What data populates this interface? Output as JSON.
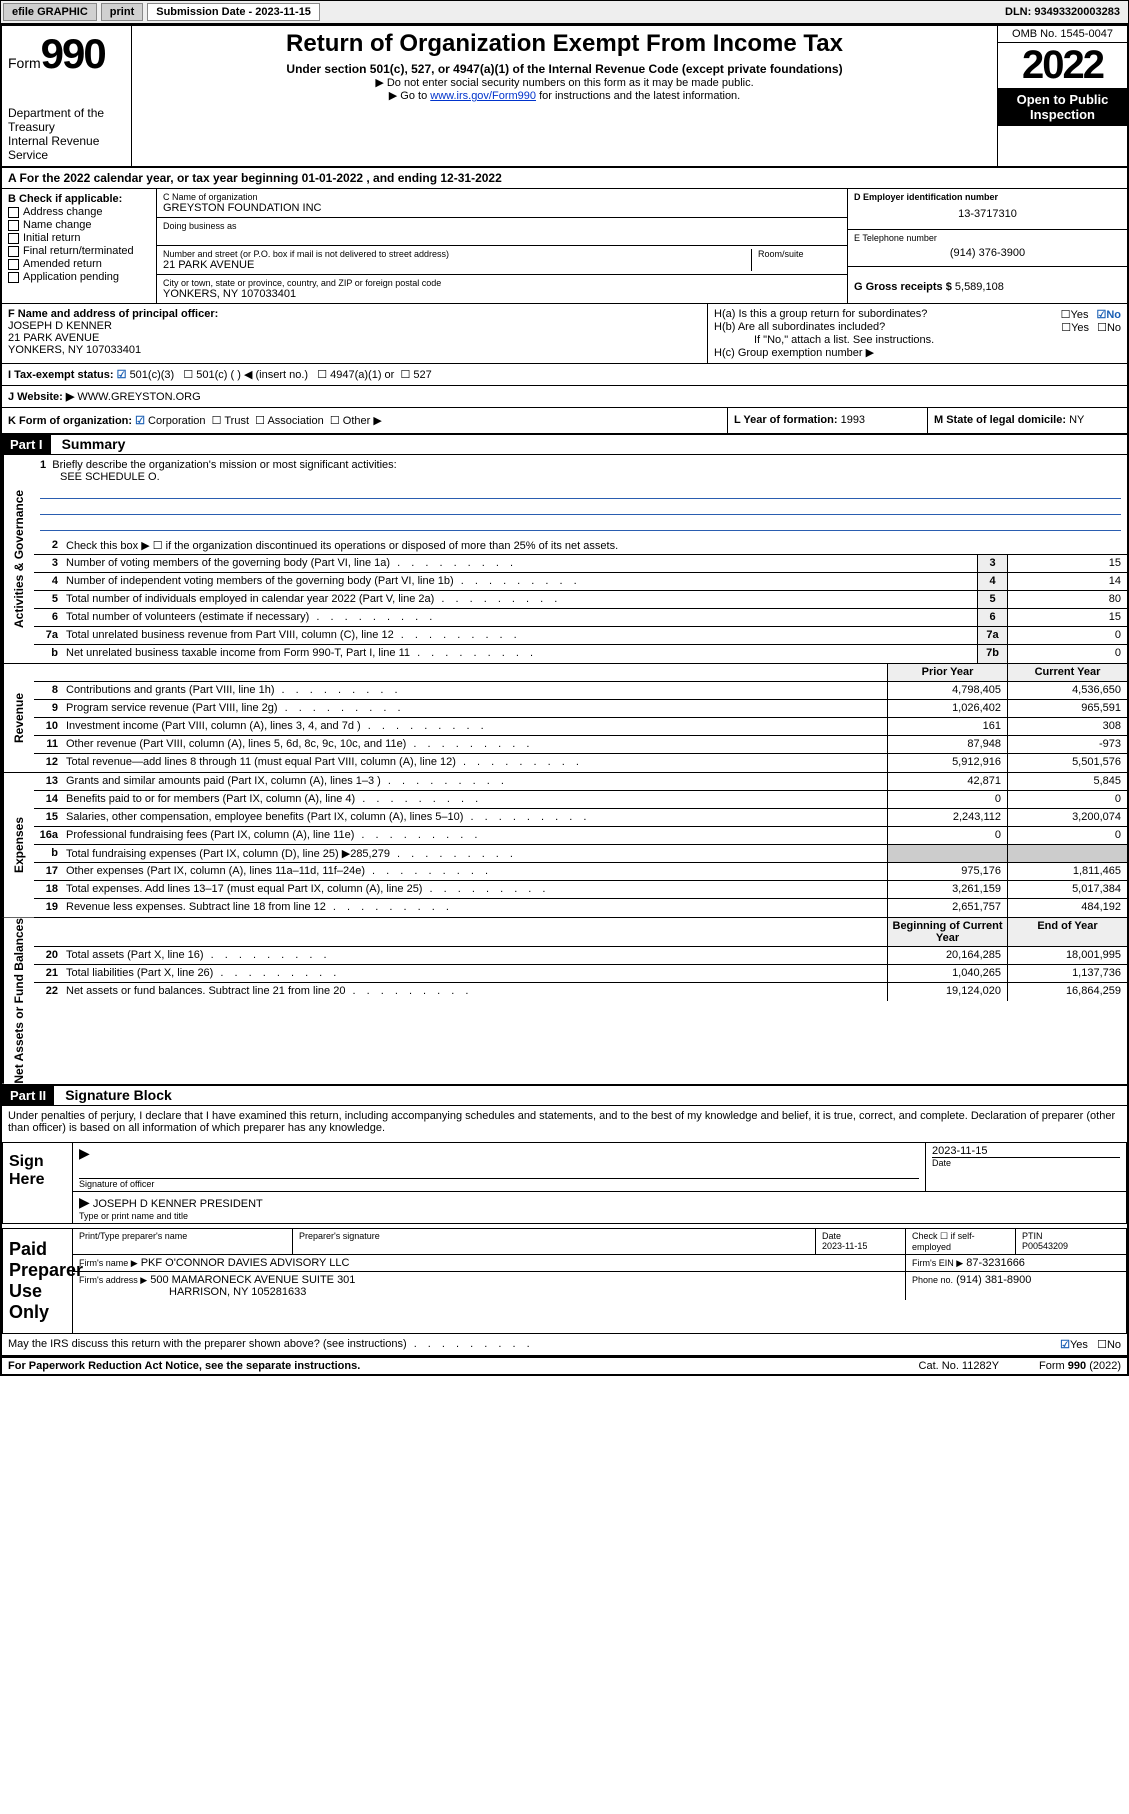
{
  "topbar": {
    "efile": "efile GRAPHIC",
    "print": "print",
    "sub_label": "Submission Date - 2023-11-15",
    "dln": "DLN: 93493320003283"
  },
  "header": {
    "form_word": "Form",
    "form_num": "990",
    "dept": "Department of the Treasury",
    "irs": "Internal Revenue Service",
    "title": "Return of Organization Exempt From Income Tax",
    "sub1": "Under section 501(c), 527, or 4947(a)(1) of the Internal Revenue Code (except private foundations)",
    "sub2": "▶ Do not enter social security numbers on this form as it may be made public.",
    "sub3_pre": "▶ Go to ",
    "sub3_link": "www.irs.gov/Form990",
    "sub3_post": " for instructions and the latest information.",
    "omb": "OMB No. 1545-0047",
    "year": "2022",
    "otp": "Open to Public Inspection"
  },
  "row_a": "A For the 2022 calendar year, or tax year beginning 01-01-2022   , and ending 12-31-2022",
  "col_b": {
    "label": "B Check if applicable:",
    "items": [
      "Address change",
      "Name change",
      "Initial return",
      "Final return/terminated",
      "Amended return",
      "Application pending"
    ]
  },
  "col_c": {
    "name_lbl": "C Name of organization",
    "name": "GREYSTON FOUNDATION INC",
    "dba_lbl": "Doing business as",
    "dba": "",
    "street_lbl": "Number and street (or P.O. box if mail is not delivered to street address)",
    "room_lbl": "Room/suite",
    "street": "21 PARK AVENUE",
    "city_lbl": "City or town, state or province, country, and ZIP or foreign postal code",
    "city": "YONKERS, NY  107033401"
  },
  "col_de": {
    "d_lbl": "D Employer identification number",
    "d_val": "13-3717310",
    "e_lbl": "E Telephone number",
    "e_val": "(914) 376-3900",
    "g_lbl": "G Gross receipts $",
    "g_val": "5,589,108"
  },
  "row_f": {
    "lbl": "F Name and address of principal officer:",
    "name": "JOSEPH D KENNER",
    "addr1": "21 PARK AVENUE",
    "addr2": "YONKERS, NY  107033401"
  },
  "row_h": {
    "ha": "H(a)  Is this a group return for subordinates?",
    "hb": "H(b)  Are all subordinates included?",
    "hb_note": "If \"No,\" attach a list. See instructions.",
    "hc": "H(c)  Group exemption number ▶",
    "yes": "Yes",
    "no": "No"
  },
  "row_i": {
    "lbl": "I   Tax-exempt status:",
    "o1": "501(c)(3)",
    "o2": "501(c) (  ) ◀ (insert no.)",
    "o3": "4947(a)(1) or",
    "o4": "527"
  },
  "row_j": {
    "lbl": "J   Website: ▶",
    "val": "WWW.GREYSTON.ORG"
  },
  "row_k": {
    "lbl": "K Form of organization:",
    "corp": "Corporation",
    "trust": "Trust",
    "assoc": "Association",
    "other": "Other ▶",
    "l_lbl": "L Year of formation:",
    "l_val": "1993",
    "m_lbl": "M State of legal domicile:",
    "m_val": "NY"
  },
  "part1": {
    "hdr": "Part I",
    "title": "Summary",
    "q1": "Briefly describe the organization's mission or most significant activities:",
    "q1_ans": "SEE SCHEDULE O.",
    "q2": "Check this box ▶ ☐  if the organization discontinued its operations or disposed of more than 25% of its net assets.",
    "sections": {
      "gov": "Activities & Governance",
      "rev": "Revenue",
      "exp": "Expenses",
      "net": "Net Assets or Fund Balances"
    },
    "col_py": "Prior Year",
    "col_cy": "Current Year",
    "col_boy": "Beginning of Current Year",
    "col_eoy": "End of Year",
    "lines_gov": [
      {
        "n": "3",
        "t": "Number of voting members of the governing body (Part VI, line 1a)",
        "box": "3",
        "v": "15"
      },
      {
        "n": "4",
        "t": "Number of independent voting members of the governing body (Part VI, line 1b)",
        "box": "4",
        "v": "14"
      },
      {
        "n": "5",
        "t": "Total number of individuals employed in calendar year 2022 (Part V, line 2a)",
        "box": "5",
        "v": "80"
      },
      {
        "n": "6",
        "t": "Total number of volunteers (estimate if necessary)",
        "box": "6",
        "v": "15"
      },
      {
        "n": "7a",
        "t": "Total unrelated business revenue from Part VIII, column (C), line 12",
        "box": "7a",
        "v": "0"
      },
      {
        "n": "b",
        "t": "Net unrelated business taxable income from Form 990-T, Part I, line 11",
        "box": "7b",
        "v": "0"
      }
    ],
    "lines_rev": [
      {
        "n": "8",
        "t": "Contributions and grants (Part VIII, line 1h)",
        "py": "4,798,405",
        "cy": "4,536,650"
      },
      {
        "n": "9",
        "t": "Program service revenue (Part VIII, line 2g)",
        "py": "1,026,402",
        "cy": "965,591"
      },
      {
        "n": "10",
        "t": "Investment income (Part VIII, column (A), lines 3, 4, and 7d )",
        "py": "161",
        "cy": "308"
      },
      {
        "n": "11",
        "t": "Other revenue (Part VIII, column (A), lines 5, 6d, 8c, 9c, 10c, and 11e)",
        "py": "87,948",
        "cy": "-973"
      },
      {
        "n": "12",
        "t": "Total revenue—add lines 8 through 11 (must equal Part VIII, column (A), line 12)",
        "py": "5,912,916",
        "cy": "5,501,576"
      }
    ],
    "lines_exp": [
      {
        "n": "13",
        "t": "Grants and similar amounts paid (Part IX, column (A), lines 1–3 )",
        "py": "42,871",
        "cy": "5,845"
      },
      {
        "n": "14",
        "t": "Benefits paid to or for members (Part IX, column (A), line 4)",
        "py": "0",
        "cy": "0"
      },
      {
        "n": "15",
        "t": "Salaries, other compensation, employee benefits (Part IX, column (A), lines 5–10)",
        "py": "2,243,112",
        "cy": "3,200,074"
      },
      {
        "n": "16a",
        "t": "Professional fundraising fees (Part IX, column (A), line 11e)",
        "py": "0",
        "cy": "0"
      },
      {
        "n": "b",
        "t": "Total fundraising expenses (Part IX, column (D), line 25) ▶285,279",
        "py": "",
        "cy": ""
      },
      {
        "n": "17",
        "t": "Other expenses (Part IX, column (A), lines 11a–11d, 11f–24e)",
        "py": "975,176",
        "cy": "1,811,465"
      },
      {
        "n": "18",
        "t": "Total expenses. Add lines 13–17 (must equal Part IX, column (A), line 25)",
        "py": "3,261,159",
        "cy": "5,017,384"
      },
      {
        "n": "19",
        "t": "Revenue less expenses. Subtract line 18 from line 12",
        "py": "2,651,757",
        "cy": "484,192"
      }
    ],
    "lines_net": [
      {
        "n": "20",
        "t": "Total assets (Part X, line 16)",
        "py": "20,164,285",
        "cy": "18,001,995"
      },
      {
        "n": "21",
        "t": "Total liabilities (Part X, line 26)",
        "py": "1,040,265",
        "cy": "1,137,736"
      },
      {
        "n": "22",
        "t": "Net assets or fund balances. Subtract line 21 from line 20",
        "py": "19,124,020",
        "cy": "16,864,259"
      }
    ]
  },
  "part2": {
    "hdr": "Part II",
    "title": "Signature Block",
    "decl": "Under penalties of perjury, I declare that I have examined this return, including accompanying schedules and statements, and to the best of my knowledge and belief, it is true, correct, and complete. Declaration of preparer (other than officer) is based on all information of which preparer has any knowledge.",
    "sign_here": "Sign Here",
    "sig_officer": "Signature of officer",
    "sig_date": "2023-11-15",
    "date_lbl": "Date",
    "officer_name": "JOSEPH D KENNER  PRESIDENT",
    "officer_sub": "Type or print name and title",
    "paid_lbl": "Paid Preparer Use Only",
    "col_prep": "Print/Type preparer's name",
    "col_sig": "Preparer's signature",
    "col_date": "Date",
    "prep_date": "2023-11-15",
    "col_self": "Check ☐ if self-employed",
    "col_ptin": "PTIN",
    "ptin": "P00543209",
    "firm_name_lbl": "Firm's name   ▶",
    "firm_name": "PKF O'CONNOR DAVIES ADVISORY LLC",
    "firm_ein_lbl": "Firm's EIN ▶",
    "firm_ein": "87-3231666",
    "firm_addr_lbl": "Firm's address ▶",
    "firm_addr1": "500 MAMARONECK AVENUE SUITE 301",
    "firm_addr2": "HARRISON, NY  105281633",
    "firm_phone_lbl": "Phone no.",
    "firm_phone": "(914) 381-8900",
    "discuss": "May the IRS discuss this return with the preparer shown above? (see instructions)",
    "yes": "Yes",
    "no": "No"
  },
  "footer": {
    "pra": "For Paperwork Reduction Act Notice, see the separate instructions.",
    "cat": "Cat. No. 11282Y",
    "form": "Form 990 (2022)"
  },
  "colors": {
    "link": "#0033cc",
    "check": "#1a5fb4"
  }
}
